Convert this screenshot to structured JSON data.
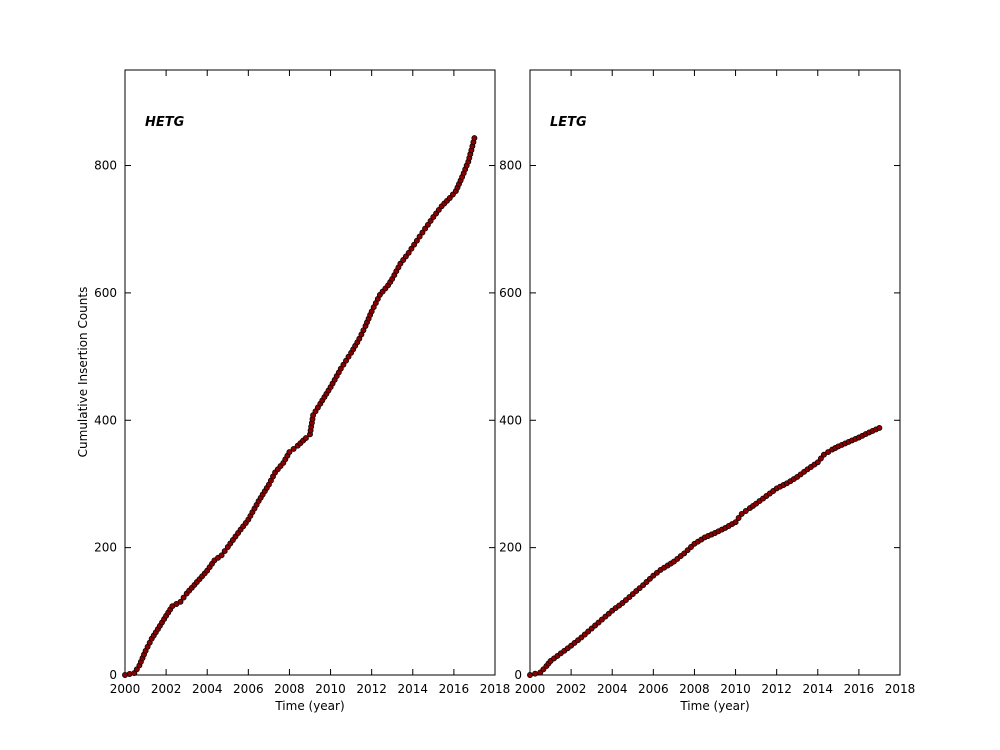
{
  "figure": {
    "ylabel": "Cumulative Insertion Counts",
    "background": "#ffffff",
    "point_fill": "#8b0000",
    "point_edge": "#000000",
    "axis_color": "#000000"
  },
  "chart_data": [
    {
      "type": "scatter",
      "title": "HETG",
      "xlabel": "Time (year)",
      "ylabel": "Cumulative Insertion Counts",
      "xlim": [
        2000,
        2018
      ],
      "ylim": [
        0,
        950
      ],
      "xticks": [
        2000,
        2002,
        2004,
        2006,
        2008,
        2010,
        2012,
        2014,
        2016,
        2018
      ],
      "yticks": [
        0,
        200,
        400,
        600,
        800
      ],
      "grid": false,
      "legend": "none",
      "points": [
        [
          2000.0,
          0
        ],
        [
          2000.45,
          3
        ],
        [
          2000.7,
          15
        ],
        [
          2001.0,
          38
        ],
        [
          2001.3,
          57
        ],
        [
          2001.6,
          72
        ],
        [
          2002.0,
          93
        ],
        [
          2002.3,
          108
        ],
        [
          2002.7,
          115
        ],
        [
          2003.0,
          128
        ],
        [
          2003.5,
          146
        ],
        [
          2004.0,
          164
        ],
        [
          2004.35,
          180
        ],
        [
          2004.7,
          188
        ],
        [
          2005.0,
          201
        ],
        [
          2005.5,
          223
        ],
        [
          2006.0,
          244
        ],
        [
          2006.5,
          273
        ],
        [
          2007.0,
          299
        ],
        [
          2007.3,
          318
        ],
        [
          2007.7,
          333
        ],
        [
          2008.0,
          350
        ],
        [
          2008.4,
          360
        ],
        [
          2008.8,
          372
        ],
        [
          2009.0,
          378
        ],
        [
          2009.15,
          408
        ],
        [
          2009.5,
          426
        ],
        [
          2010.0,
          452
        ],
        [
          2010.5,
          481
        ],
        [
          2011.0,
          506
        ],
        [
          2011.4,
          528
        ],
        [
          2011.7,
          548
        ],
        [
          2012.0,
          571
        ],
        [
          2012.4,
          597
        ],
        [
          2012.8,
          612
        ],
        [
          2013.0,
          622
        ],
        [
          2013.4,
          646
        ],
        [
          2013.8,
          663
        ],
        [
          2014.2,
          682
        ],
        [
          2014.6,
          701
        ],
        [
          2015.0,
          719
        ],
        [
          2015.4,
          736
        ],
        [
          2015.8,
          749
        ],
        [
          2016.1,
          760
        ],
        [
          2016.4,
          782
        ],
        [
          2016.7,
          806
        ],
        [
          2016.85,
          824
        ],
        [
          2017.0,
          843
        ]
      ]
    },
    {
      "type": "scatter",
      "title": "LETG",
      "xlabel": "Time (year)",
      "ylabel": "",
      "xlim": [
        2000,
        2018
      ],
      "ylim": [
        0,
        950
      ],
      "xticks": [
        2000,
        2002,
        2004,
        2006,
        2008,
        2010,
        2012,
        2014,
        2016,
        2018
      ],
      "yticks": [
        0,
        200,
        400,
        600,
        800
      ],
      "grid": false,
      "legend": "none",
      "points": [
        [
          2000.0,
          0
        ],
        [
          2000.5,
          4
        ],
        [
          2000.8,
          14
        ],
        [
          2001.0,
          22
        ],
        [
          2001.5,
          34
        ],
        [
          2002.0,
          46
        ],
        [
          2002.5,
          59
        ],
        [
          2003.0,
          73
        ],
        [
          2003.5,
          87
        ],
        [
          2004.0,
          101
        ],
        [
          2004.5,
          113
        ],
        [
          2005.0,
          127
        ],
        [
          2005.5,
          141
        ],
        [
          2006.0,
          156
        ],
        [
          2006.35,
          165
        ],
        [
          2006.7,
          172
        ],
        [
          2007.0,
          178
        ],
        [
          2007.5,
          191
        ],
        [
          2008.0,
          206
        ],
        [
          2008.5,
          216
        ],
        [
          2009.0,
          223
        ],
        [
          2009.5,
          231
        ],
        [
          2010.0,
          240
        ],
        [
          2010.3,
          253
        ],
        [
          2010.7,
          262
        ],
        [
          2011.0,
          269
        ],
        [
          2011.5,
          281
        ],
        [
          2012.0,
          293
        ],
        [
          2012.5,
          301
        ],
        [
          2013.0,
          311
        ],
        [
          2013.5,
          323
        ],
        [
          2014.0,
          334
        ],
        [
          2014.3,
          346
        ],
        [
          2014.7,
          354
        ],
        [
          2015.0,
          359
        ],
        [
          2015.5,
          366
        ],
        [
          2016.0,
          373
        ],
        [
          2016.5,
          381
        ],
        [
          2017.0,
          388
        ]
      ]
    }
  ]
}
